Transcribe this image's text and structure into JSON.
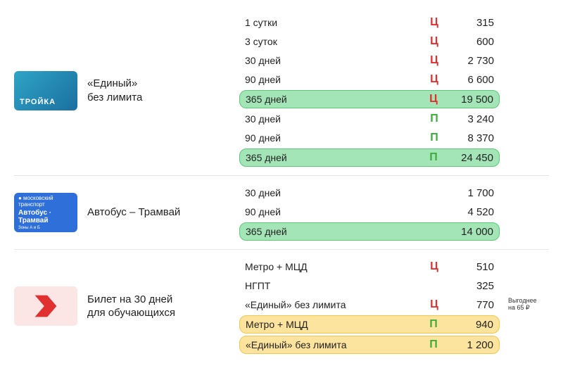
{
  "colors": {
    "tag_red": "#e03030",
    "tag_green": "#3cae3c",
    "hl_green_bg": "#a4e5b7",
    "hl_green_border": "#5bc978",
    "hl_yellow_bg": "#fde49e",
    "hl_yellow_border": "#f0c850",
    "divider": "#e5e5e5"
  },
  "sections": [
    {
      "id": "troika",
      "card": {
        "kind": "troika",
        "text": "ТРОЙКА"
      },
      "label_line1": "«Единый»",
      "label_line2": "без лимита",
      "rows": [
        {
          "period": "1 сутки",
          "tag": "Ц",
          "tag_color": "red",
          "price": "315",
          "hl": null
        },
        {
          "period": "3 суток",
          "tag": "Ц",
          "tag_color": "red",
          "price": "600",
          "hl": null
        },
        {
          "period": "30 дней",
          "tag": "Ц",
          "tag_color": "red",
          "price": "2 730",
          "hl": null
        },
        {
          "period": "90 дней",
          "tag": "Ц",
          "tag_color": "red",
          "price": "6 600",
          "hl": null
        },
        {
          "period": "365 дней",
          "tag": "Ц",
          "tag_color": "red",
          "price": "19 500",
          "hl": "green"
        },
        {
          "period": "30 дней",
          "tag": "П",
          "tag_color": "grn",
          "price": "3 240",
          "hl": null
        },
        {
          "period": "90 дней",
          "tag": "П",
          "tag_color": "grn",
          "price": "8 370",
          "hl": null
        },
        {
          "period": "365 дней",
          "tag": "П",
          "tag_color": "grn",
          "price": "24 450",
          "hl": "green"
        }
      ]
    },
    {
      "id": "bus",
      "card": {
        "kind": "bus",
        "line1": "●  московский транспорт",
        "line2": "Автобус · Трамвай",
        "line3": "Зоны А и Б"
      },
      "label_line1": "Автобус – Трамвай",
      "label_line2": "",
      "rows": [
        {
          "period": "30 дней",
          "tag": "",
          "tag_color": "",
          "price": "1 700",
          "hl": null
        },
        {
          "period": "90 дней",
          "tag": "",
          "tag_color": "",
          "price": "4 520",
          "hl": null
        },
        {
          "period": "365 дней",
          "tag": "",
          "tag_color": "",
          "price": "14 000",
          "hl": "green"
        }
      ]
    },
    {
      "id": "student",
      "card": {
        "kind": "student"
      },
      "label_line1": "Билет на 30 дней",
      "label_line2": "для обучающихся",
      "rows": [
        {
          "period": "Метро + МЦД",
          "tag": "Ц",
          "tag_color": "red",
          "price": "510",
          "hl": null
        },
        {
          "period": "НГПТ",
          "tag": "",
          "tag_color": "",
          "price": "325",
          "hl": null
        },
        {
          "period": "«Единый» без лимита",
          "tag": "Ц",
          "tag_color": "red",
          "price": "770",
          "hl": null,
          "note_line1": "Выгоднее",
          "note_line2": "на 65 ₽"
        },
        {
          "period": "Метро + МЦД",
          "tag": "П",
          "tag_color": "grn",
          "price": "940",
          "hl": "yellow"
        },
        {
          "period": "«Единый» без лимита",
          "tag": "П",
          "tag_color": "grn",
          "price": "1 200",
          "hl": "yellow"
        }
      ]
    }
  ]
}
